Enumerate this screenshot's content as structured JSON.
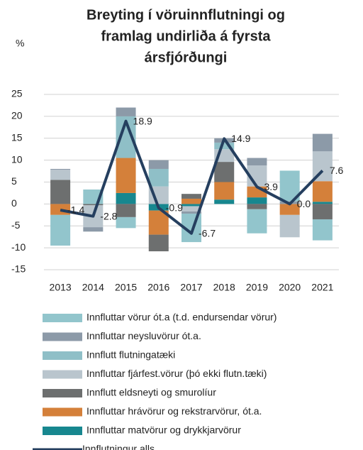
{
  "chart_data": {
    "type": "bar",
    "title": [
      "Breyting í vöruinnflutningi og",
      "framlag undirliða á fyrsta",
      "ársfjórðungi"
    ],
    "ylabel": "%",
    "categories": [
      "2013",
      "2014",
      "2015",
      "2016",
      "2017",
      "2018",
      "2019",
      "2020",
      "2021"
    ],
    "ylim": [
      -15,
      25
    ],
    "yticks": [
      -15,
      -10,
      -5,
      0,
      5,
      10,
      15,
      20,
      25
    ],
    "grid": true,
    "stacked": true,
    "series": [
      {
        "name": "Innfluttar vörur ót.a (t.d. endursendar vörur)",
        "color": "#92c5cc",
        "values": [
          -7,
          3.3,
          -2.5,
          0,
          -6.5,
          0,
          -5.5,
          7,
          -4.8
        ]
      },
      {
        "name": "Innfluttar neysluvörur ót.a.",
        "color": "#8c9aa8",
        "values": [
          0.2,
          -1,
          2,
          2,
          -0.5,
          1,
          1.7,
          0.6,
          4
        ]
      },
      {
        "name": "Innflutt flutningatæki",
        "color": "#8fbfc7",
        "values": [
          0,
          0,
          9.5,
          4,
          0,
          1.5,
          0,
          0,
          0
        ]
      },
      {
        "name": "Innfluttar fjárfest.vörur (þó ekki flutn.tæki)",
        "color": "#b9c5cd",
        "values": [
          2.3,
          -5,
          0,
          4,
          -1.2,
          2.9,
          4.8,
          -5.1,
          6.8
        ]
      },
      {
        "name": "Innflutt eldsneyti og smurolíur",
        "color": "#6d6f6f",
        "values": [
          5.5,
          -0.3,
          -3,
          -3.8,
          1.1,
          4.6,
          -1.2,
          0,
          -3.5
        ]
      },
      {
        "name": "Innfluttar hrávörur og rekstrarvörur, ót.a.",
        "color": "#d4803a",
        "values": [
          -2.5,
          0,
          8,
          -5.5,
          1.2,
          4,
          2.5,
          -2.5,
          4.7
        ]
      },
      {
        "name": "Innfluttar matvörur og drykkjarvörur",
        "color": "#17878f",
        "values": [
          0,
          0,
          2.5,
          -1.5,
          -0.5,
          1,
          1.5,
          0,
          0.5
        ]
      }
    ],
    "line": {
      "name": "Innflutningur alls",
      "color": "#253f5f",
      "values": [
        -1.4,
        -2.8,
        18.9,
        -0.9,
        -6.7,
        14.9,
        3.9,
        0.0,
        7.6
      ],
      "value_labels": [
        "-1.4",
        "-2.8",
        "18.9",
        "-0.9",
        "-6.7",
        "14.9",
        "3.9",
        "0.0",
        "7.6"
      ]
    }
  }
}
